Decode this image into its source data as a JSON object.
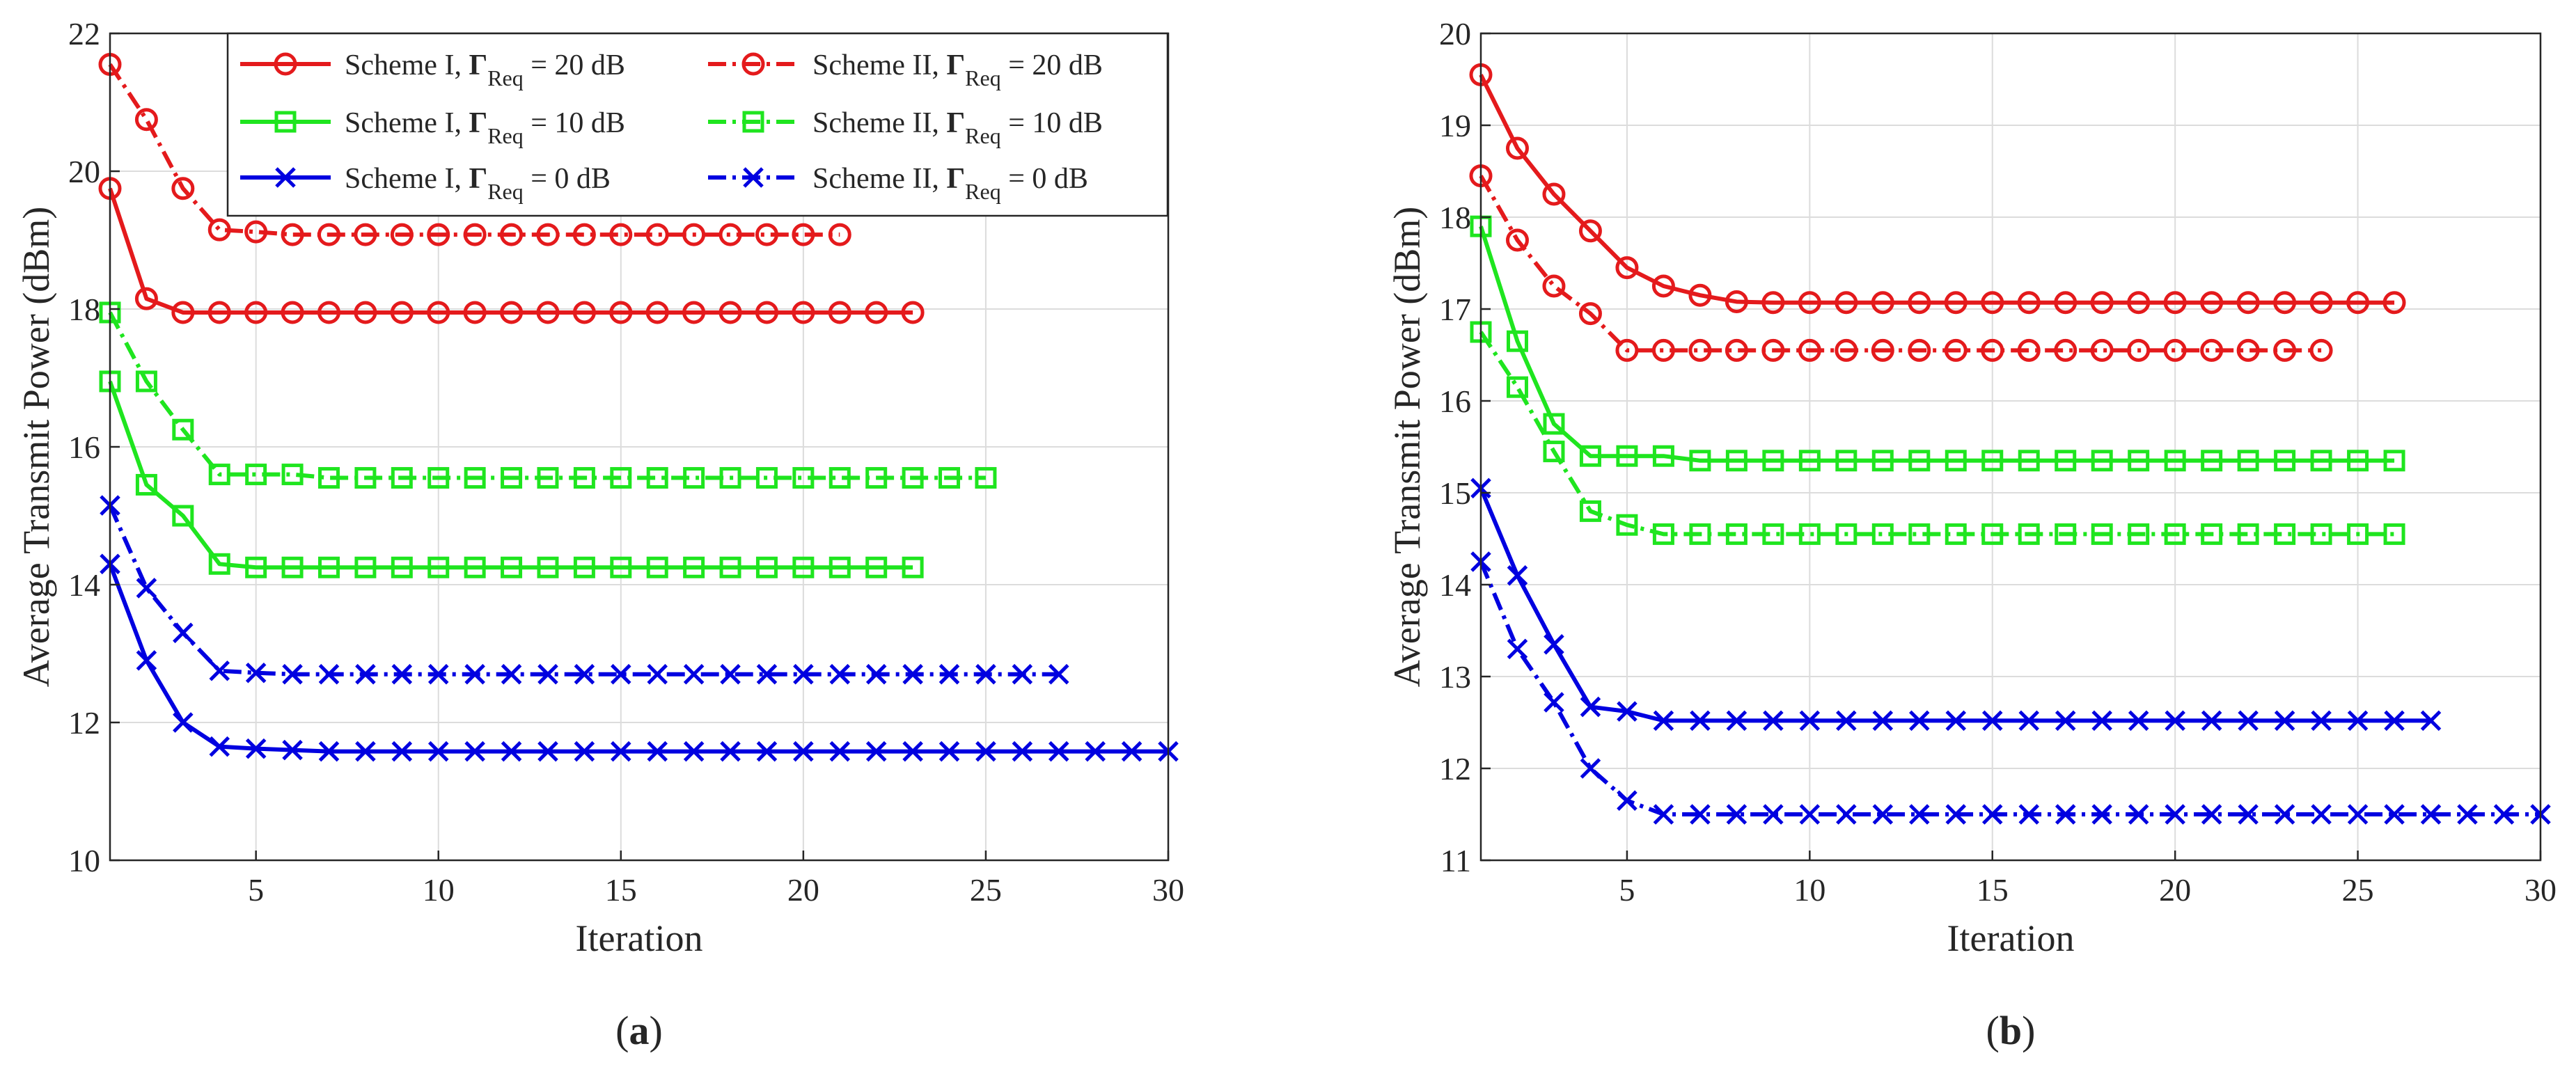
{
  "chart_data": [
    {
      "type": "line",
      "panel_label": "a",
      "xlabel": "Iteration",
      "ylabel": "Average Transmit Power (dBm)",
      "xlim": [
        1,
        30
      ],
      "ylim": [
        10,
        22
      ],
      "xticks": [
        5,
        10,
        15,
        20,
        25,
        30
      ],
      "yticks": [
        10,
        12,
        14,
        16,
        18,
        20,
        22
      ],
      "grid": true,
      "legend_placement": "top-right",
      "legend_labels": {
        "scheme1_20": {
          "main": "Scheme I, ",
          "gamma": "Γ",
          "sub": "Req",
          "value": " = 20 dB"
        },
        "scheme2_20": {
          "main": "Scheme II, ",
          "gamma": "Γ",
          "sub": "Req",
          "value": " = 20 dB"
        },
        "scheme1_10": {
          "main": "Scheme I, ",
          "gamma": "Γ",
          "sub": "Req",
          "value": " = 10 dB"
        },
        "scheme2_10": {
          "main": "Scheme II, ",
          "gamma": "Γ",
          "sub": "Req",
          "value": " = 10 dB"
        },
        "scheme1_0": {
          "main": "Scheme I, ",
          "gamma": "Γ",
          "sub": "Req",
          "value": " = 0 dB"
        },
        "scheme2_0": {
          "main": "Scheme II, ",
          "gamma": "Γ",
          "sub": "Req",
          "value": " = 0 dB"
        }
      },
      "series": [
        {
          "key": "scheme1_20",
          "color": "#e41a1c",
          "dash": "solid",
          "marker": "circle",
          "x_start": 1,
          "values": [
            19.75,
            18.15,
            17.95,
            17.95,
            17.95,
            17.95,
            17.95,
            17.95,
            17.95,
            17.95,
            17.95,
            17.95,
            17.95,
            17.95,
            17.95,
            17.95,
            17.95,
            17.95,
            17.95,
            17.95,
            17.95,
            17.95,
            17.95
          ]
        },
        {
          "key": "scheme2_20",
          "color": "#e41a1c",
          "dash": "dashdot",
          "marker": "circle",
          "x_start": 1,
          "values": [
            21.55,
            20.75,
            19.75,
            19.15,
            19.12,
            19.08,
            19.08,
            19.08,
            19.08,
            19.08,
            19.08,
            19.08,
            19.08,
            19.08,
            19.08,
            19.08,
            19.08,
            19.08,
            19.08,
            19.08,
            19.08
          ]
        },
        {
          "key": "scheme1_10",
          "color": "#1fe51f",
          "dash": "solid",
          "marker": "square",
          "x_start": 1,
          "values": [
            16.95,
            15.45,
            15.0,
            14.3,
            14.25,
            14.25,
            14.25,
            14.25,
            14.25,
            14.25,
            14.25,
            14.25,
            14.25,
            14.25,
            14.25,
            14.25,
            14.25,
            14.25,
            14.25,
            14.25,
            14.25,
            14.25,
            14.25
          ]
        },
        {
          "key": "scheme2_10",
          "color": "#1fe51f",
          "dash": "dashdot",
          "marker": "square",
          "x_start": 1,
          "values": [
            17.95,
            16.95,
            16.25,
            15.6,
            15.6,
            15.6,
            15.55,
            15.55,
            15.55,
            15.55,
            15.55,
            15.55,
            15.55,
            15.55,
            15.55,
            15.55,
            15.55,
            15.55,
            15.55,
            15.55,
            15.55,
            15.55,
            15.55,
            15.55,
            15.55
          ]
        },
        {
          "key": "scheme1_0",
          "color": "#0000e0",
          "dash": "solid",
          "marker": "x",
          "x_start": 1,
          "values": [
            14.3,
            12.9,
            12.0,
            11.65,
            11.62,
            11.6,
            11.58,
            11.58,
            11.58,
            11.58,
            11.58,
            11.58,
            11.58,
            11.58,
            11.58,
            11.58,
            11.58,
            11.58,
            11.58,
            11.58,
            11.58,
            11.58,
            11.58,
            11.58,
            11.58,
            11.58,
            11.58,
            11.58,
            11.58,
            11.58
          ]
        },
        {
          "key": "scheme2_0",
          "color": "#0000e0",
          "dash": "dashdot",
          "marker": "x",
          "x_start": 1,
          "values": [
            15.15,
            13.95,
            13.3,
            12.75,
            12.72,
            12.7,
            12.7,
            12.7,
            12.7,
            12.7,
            12.7,
            12.7,
            12.7,
            12.7,
            12.7,
            12.7,
            12.7,
            12.7,
            12.7,
            12.7,
            12.7,
            12.7,
            12.7,
            12.7,
            12.7,
            12.7,
            12.7
          ]
        }
      ]
    },
    {
      "type": "line",
      "panel_label": "b",
      "xlabel": "Iteration",
      "ylabel": "Average Transmit Power (dBm)",
      "xlim": [
        1,
        30
      ],
      "ylim": [
        11,
        20
      ],
      "xticks": [
        5,
        10,
        15,
        20,
        25,
        30
      ],
      "yticks": [
        11,
        12,
        13,
        14,
        15,
        16,
        17,
        18,
        19,
        20
      ],
      "grid": true,
      "legend_placement": "none",
      "series": [
        {
          "key": "scheme1_20",
          "color": "#e41a1c",
          "dash": "solid",
          "marker": "circle",
          "x_start": 1,
          "values": [
            19.55,
            18.75,
            18.25,
            17.85,
            17.45,
            17.25,
            17.15,
            17.08,
            17.07,
            17.07,
            17.07,
            17.07,
            17.07,
            17.07,
            17.07,
            17.07,
            17.07,
            17.07,
            17.07,
            17.07,
            17.07,
            17.07,
            17.07,
            17.07,
            17.07,
            17.07
          ]
        },
        {
          "key": "scheme2_20",
          "color": "#e41a1c",
          "dash": "dashdot",
          "marker": "circle",
          "x_start": 1,
          "values": [
            18.45,
            17.75,
            17.25,
            16.95,
            16.55,
            16.55,
            16.55,
            16.55,
            16.55,
            16.55,
            16.55,
            16.55,
            16.55,
            16.55,
            16.55,
            16.55,
            16.55,
            16.55,
            16.55,
            16.55,
            16.55,
            16.55,
            16.55,
            16.55
          ]
        },
        {
          "key": "scheme1_10",
          "color": "#1fe51f",
          "dash": "solid",
          "marker": "square",
          "x_start": 1,
          "values": [
            17.9,
            16.65,
            15.75,
            15.4,
            15.4,
            15.4,
            15.35,
            15.35,
            15.35,
            15.35,
            15.35,
            15.35,
            15.35,
            15.35,
            15.35,
            15.35,
            15.35,
            15.35,
            15.35,
            15.35,
            15.35,
            15.35,
            15.35,
            15.35,
            15.35,
            15.35
          ]
        },
        {
          "key": "scheme2_10",
          "color": "#1fe51f",
          "dash": "dashdot",
          "marker": "square",
          "x_start": 1,
          "values": [
            16.75,
            16.15,
            15.45,
            14.8,
            14.65,
            14.55,
            14.55,
            14.55,
            14.55,
            14.55,
            14.55,
            14.55,
            14.55,
            14.55,
            14.55,
            14.55,
            14.55,
            14.55,
            14.55,
            14.55,
            14.55,
            14.55,
            14.55,
            14.55,
            14.55,
            14.55
          ]
        },
        {
          "key": "scheme1_0",
          "color": "#0000e0",
          "dash": "solid",
          "marker": "x",
          "x_start": 1,
          "values": [
            15.05,
            14.1,
            13.35,
            12.67,
            12.62,
            12.52,
            12.52,
            12.52,
            12.52,
            12.52,
            12.52,
            12.52,
            12.52,
            12.52,
            12.52,
            12.52,
            12.52,
            12.52,
            12.52,
            12.52,
            12.52,
            12.52,
            12.52,
            12.52,
            12.52,
            12.52,
            12.52
          ]
        },
        {
          "key": "scheme2_0",
          "color": "#0000e0",
          "dash": "dashdot",
          "marker": "x",
          "x_start": 1,
          "values": [
            14.25,
            13.3,
            12.72,
            12.0,
            11.65,
            11.5,
            11.5,
            11.5,
            11.5,
            11.5,
            11.5,
            11.5,
            11.5,
            11.5,
            11.5,
            11.5,
            11.5,
            11.5,
            11.5,
            11.5,
            11.5,
            11.5,
            11.5,
            11.5,
            11.5,
            11.5,
            11.5,
            11.5,
            11.5,
            11.5
          ]
        }
      ]
    }
  ]
}
